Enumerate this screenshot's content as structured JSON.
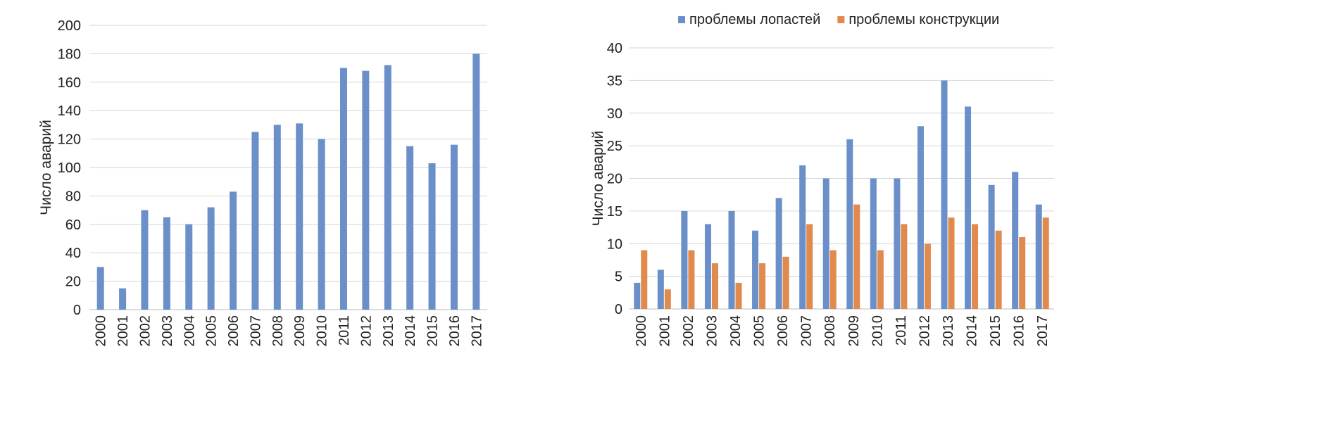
{
  "chart_data": [
    {
      "type": "bar",
      "ylabel": "Число аварий",
      "ylim": [
        0,
        200
      ],
      "yticks": [
        0,
        20,
        40,
        60,
        80,
        100,
        120,
        140,
        160,
        180,
        200
      ],
      "grid": true,
      "legend": "none",
      "categories": [
        "2000",
        "2001",
        "2002",
        "2003",
        "2004",
        "2005",
        "2006",
        "2007",
        "2008",
        "2009",
        "2010",
        "2011",
        "2012",
        "2013",
        "2014",
        "2015",
        "2016",
        "2017"
      ],
      "series": [
        {
          "color": "#6a8fc9",
          "values": [
            30,
            15,
            70,
            65,
            60,
            72,
            83,
            125,
            130,
            131,
            120,
            170,
            168,
            172,
            115,
            103,
            116,
            180
          ]
        }
      ]
    },
    {
      "type": "bar",
      "ylabel": "Число аварий",
      "ylim": [
        0,
        40
      ],
      "yticks": [
        0,
        5,
        10,
        15,
        20,
        25,
        30,
        35,
        40
      ],
      "grid": true,
      "legend": "top",
      "categories": [
        "2000",
        "2001",
        "2002",
        "2003",
        "2004",
        "2005",
        "2006",
        "2007",
        "2008",
        "2009",
        "2010",
        "2011",
        "2012",
        "2013",
        "2014",
        "2015",
        "2016",
        "2017"
      ],
      "series": [
        {
          "name": "проблемы лопастей",
          "color": "#6a8fc9",
          "values": [
            4,
            6,
            15,
            13,
            15,
            12,
            17,
            22,
            20,
            26,
            20,
            20,
            28,
            35,
            31,
            19,
            21,
            16
          ]
        },
        {
          "name": "проблемы конструкции",
          "color": "#e08a4e",
          "values": [
            9,
            3,
            9,
            7,
            4,
            7,
            8,
            13,
            9,
            16,
            9,
            13,
            10,
            14,
            13,
            12,
            11,
            14
          ]
        }
      ]
    }
  ]
}
